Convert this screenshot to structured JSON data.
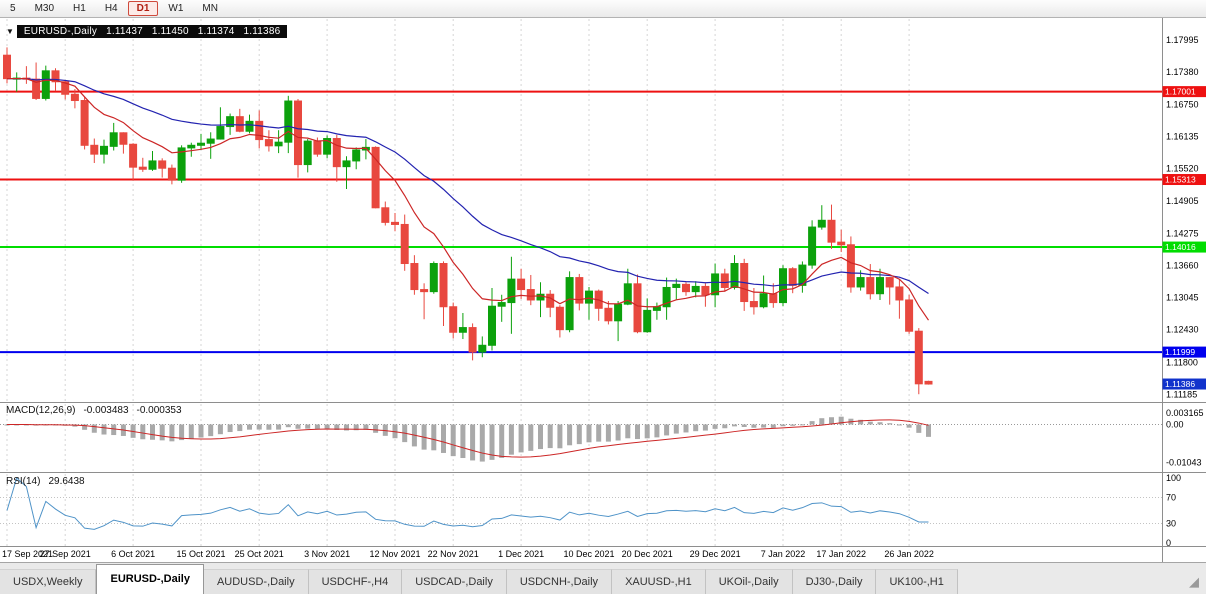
{
  "toolbar": {
    "timeframes": [
      {
        "label": "5",
        "active": false
      },
      {
        "label": "M30",
        "active": false
      },
      {
        "label": "H1",
        "active": false
      },
      {
        "label": "H4",
        "active": false
      },
      {
        "label": "D1",
        "active": true
      },
      {
        "label": "W1",
        "active": false
      },
      {
        "label": "MN",
        "active": false
      }
    ]
  },
  "chart_header": {
    "symbol": "EURUSD-,Daily",
    "open": "1.11437",
    "high": "1.11450",
    "low": "1.11374",
    "close": "1.11386"
  },
  "chart_data": {
    "type": "candlestick",
    "title": "EURUSD-,Daily",
    "up_color": "#0CA10C",
    "down_color": "#E8483F",
    "x_tick_labels": [
      "17 Sep 2021",
      "27 Sep 2021",
      "6 Oct 2021",
      "15 Oct 2021",
      "25 Oct 2021",
      "3 Nov 2021",
      "12 Nov 2021",
      "22 Nov 2021",
      "1 Dec 2021",
      "10 Dec 2021",
      "20 Dec 2021",
      "29 Dec 2021",
      "7 Jan 2022",
      "17 Jan 2022",
      "26 Jan 2022"
    ],
    "x_tick_indices": [
      0,
      6,
      13,
      20,
      26,
      33,
      40,
      46,
      53,
      60,
      66,
      73,
      80,
      86,
      93
    ],
    "candles": [
      [
        1.177,
        1.1785,
        1.1716,
        1.1725
      ],
      [
        1.1725,
        1.1737,
        1.17,
        1.1726
      ],
      [
        1.1726,
        1.1749,
        1.1715,
        1.1724
      ],
      [
        1.1724,
        1.1756,
        1.1684,
        1.1687
      ],
      [
        1.1687,
        1.175,
        1.1683,
        1.174
      ],
      [
        1.174,
        1.1745,
        1.1701,
        1.1719
      ],
      [
        1.1719,
        1.1722,
        1.1685,
        1.1695
      ],
      [
        1.1695,
        1.1705,
        1.1668,
        1.1683
      ],
      [
        1.1683,
        1.169,
        1.1589,
        1.1597
      ],
      [
        1.1597,
        1.161,
        1.1563,
        1.158
      ],
      [
        1.158,
        1.1608,
        1.1562,
        1.1595
      ],
      [
        1.1595,
        1.164,
        1.1587,
        1.1621
      ],
      [
        1.1621,
        1.1622,
        1.1581,
        1.1599
      ],
      [
        1.1599,
        1.1601,
        1.1529,
        1.1555
      ],
      [
        1.1555,
        1.1573,
        1.1546,
        1.1551
      ],
      [
        1.1551,
        1.1586,
        1.1548,
        1.1567
      ],
      [
        1.1567,
        1.1572,
        1.1535,
        1.1553
      ],
      [
        1.1553,
        1.156,
        1.1522,
        1.153
      ],
      [
        1.153,
        1.1597,
        1.1525,
        1.1592
      ],
      [
        1.1592,
        1.1602,
        1.1575,
        1.1597
      ],
      [
        1.1597,
        1.1619,
        1.1588,
        1.1601
      ],
      [
        1.1601,
        1.1622,
        1.1571,
        1.1609
      ],
      [
        1.1609,
        1.167,
        1.1608,
        1.1633
      ],
      [
        1.1633,
        1.1658,
        1.1617,
        1.1652
      ],
      [
        1.1652,
        1.1667,
        1.1622,
        1.1624
      ],
      [
        1.1624,
        1.1656,
        1.162,
        1.1643
      ],
      [
        1.1643,
        1.1664,
        1.1591,
        1.1608
      ],
      [
        1.1608,
        1.1626,
        1.1585,
        1.1596
      ],
      [
        1.1596,
        1.1626,
        1.1582,
        1.1603
      ],
      [
        1.1603,
        1.1692,
        1.1582,
        1.1682
      ],
      [
        1.1682,
        1.1686,
        1.1535,
        1.156
      ],
      [
        1.156,
        1.1609,
        1.1545,
        1.1605
      ],
      [
        1.1605,
        1.1612,
        1.1575,
        1.158
      ],
      [
        1.158,
        1.1616,
        1.1572,
        1.161
      ],
      [
        1.161,
        1.1617,
        1.1527,
        1.1556
      ],
      [
        1.1556,
        1.1576,
        1.1513,
        1.1567
      ],
      [
        1.1567,
        1.1593,
        1.1551,
        1.1588
      ],
      [
        1.1588,
        1.1609,
        1.157,
        1.1593
      ],
      [
        1.1593,
        1.1595,
        1.1476,
        1.1477
      ],
      [
        1.1477,
        1.1489,
        1.1443,
        1.1449
      ],
      [
        1.1449,
        1.1467,
        1.1432,
        1.1445
      ],
      [
        1.1445,
        1.1464,
        1.1356,
        1.137
      ],
      [
        1.137,
        1.1386,
        1.131,
        1.132
      ],
      [
        1.132,
        1.1332,
        1.1263,
        1.1316
      ],
      [
        1.1316,
        1.1374,
        1.1312,
        1.137
      ],
      [
        1.137,
        1.1374,
        1.125,
        1.1287
      ],
      [
        1.1287,
        1.1295,
        1.1226,
        1.1238
      ],
      [
        1.1238,
        1.1275,
        1.1225,
        1.1247
      ],
      [
        1.1247,
        1.1255,
        1.1184,
        1.12
      ],
      [
        1.12,
        1.123,
        1.119,
        1.1213
      ],
      [
        1.1213,
        1.1323,
        1.1203,
        1.1288
      ],
      [
        1.1288,
        1.131,
        1.1258,
        1.1295
      ],
      [
        1.1295,
        1.1383,
        1.1235,
        1.134
      ],
      [
        1.134,
        1.136,
        1.1302,
        1.132
      ],
      [
        1.132,
        1.1348,
        1.129,
        1.13
      ],
      [
        1.13,
        1.1334,
        1.1267,
        1.1311
      ],
      [
        1.1311,
        1.1319,
        1.1267,
        1.1286
      ],
      [
        1.1286,
        1.129,
        1.1228,
        1.1243
      ],
      [
        1.1243,
        1.1355,
        1.1238,
        1.1343
      ],
      [
        1.1343,
        1.135,
        1.128,
        1.1294
      ],
      [
        1.1294,
        1.1325,
        1.1262,
        1.1317
      ],
      [
        1.1317,
        1.132,
        1.126,
        1.1284
      ],
      [
        1.1284,
        1.1298,
        1.1253,
        1.126
      ],
      [
        1.126,
        1.1298,
        1.1221,
        1.1292
      ],
      [
        1.1292,
        1.136,
        1.129,
        1.1331
      ],
      [
        1.1331,
        1.1349,
        1.1236,
        1.1239
      ],
      [
        1.1239,
        1.1303,
        1.1237,
        1.128
      ],
      [
        1.128,
        1.1295,
        1.1262,
        1.1287
      ],
      [
        1.1287,
        1.1343,
        1.1262,
        1.1324
      ],
      [
        1.1324,
        1.1341,
        1.1301,
        1.133
      ],
      [
        1.133,
        1.1334,
        1.1308,
        1.1316
      ],
      [
        1.1316,
        1.1336,
        1.1305,
        1.1326
      ],
      [
        1.1326,
        1.1332,
        1.1287,
        1.131
      ],
      [
        1.131,
        1.137,
        1.1286,
        1.135
      ],
      [
        1.135,
        1.136,
        1.1316,
        1.1324
      ],
      [
        1.1324,
        1.1386,
        1.132,
        1.137
      ],
      [
        1.137,
        1.1379,
        1.1279,
        1.1297
      ],
      [
        1.1297,
        1.1323,
        1.1272,
        1.1287
      ],
      [
        1.1287,
        1.1347,
        1.1284,
        1.1312
      ],
      [
        1.1312,
        1.1332,
        1.1285,
        1.1295
      ],
      [
        1.1295,
        1.1367,
        1.1288,
        1.136
      ],
      [
        1.136,
        1.1363,
        1.1313,
        1.1328
      ],
      [
        1.1328,
        1.1374,
        1.1314,
        1.1367
      ],
      [
        1.1367,
        1.1453,
        1.136,
        1.144
      ],
      [
        1.144,
        1.1482,
        1.1435,
        1.1453
      ],
      [
        1.1453,
        1.1483,
        1.1398,
        1.1411
      ],
      [
        1.1411,
        1.1435,
        1.1392,
        1.1406
      ],
      [
        1.1406,
        1.1422,
        1.1314,
        1.1325
      ],
      [
        1.1325,
        1.1357,
        1.1318,
        1.1343
      ],
      [
        1.1343,
        1.1369,
        1.1301,
        1.1312
      ],
      [
        1.1312,
        1.136,
        1.13,
        1.1343
      ],
      [
        1.1343,
        1.1344,
        1.1291,
        1.1325
      ],
      [
        1.1325,
        1.134,
        1.1264,
        1.13
      ],
      [
        1.13,
        1.131,
        1.1235,
        1.124
      ],
      [
        1.124,
        1.1246,
        1.1119,
        1.1139
      ],
      [
        1.11437,
        1.1145,
        1.11374,
        1.11386
      ]
    ],
    "price_axis": {
      "min": 1.1106,
      "max": 1.1828,
      "labels": [
        "1.17995",
        "1.17380",
        "1.16750",
        "1.16135",
        "1.15520",
        "1.14905",
        "1.14275",
        "1.13660",
        "1.13045",
        "1.12430",
        "1.11800",
        "1.11185"
      ]
    },
    "hlines": [
      {
        "value": 1.17001,
        "label": "1.17001",
        "color": "#ee1111"
      },
      {
        "value": 1.15313,
        "label": "1.15313",
        "color": "#ee1111"
      },
      {
        "value": 1.14016,
        "label": "1.14016",
        "color": "#00dd00"
      },
      {
        "value": 1.11999,
        "label": "1.11999",
        "color": "#0000ee"
      }
    ],
    "last_price": {
      "value": 1.11386,
      "label": "1.11386",
      "color": "#1133cc"
    },
    "moving_averages": [
      {
        "name": "ma-slow-blue",
        "period": 30,
        "color": "#2323b0"
      },
      {
        "name": "ma-fast-red",
        "period": 10,
        "color": "#cc2626"
      }
    ],
    "indicators": {
      "macd": {
        "name": "MACD(12,26,9)",
        "main_value": "-0.003483",
        "signal_value": "-0.000353",
        "fast": 12,
        "slow": 26,
        "signal": 9,
        "axis_labels": [
          "0.003165",
          "0.00",
          "-0.01043"
        ],
        "range": {
          "min": -0.0125,
          "max": 0.0048
        },
        "hist_color": "#a9a9a9",
        "signal_color": "#cc2626"
      },
      "rsi": {
        "name": "RSI(14)",
        "value_text": "29.6438",
        "period": 14,
        "axis_labels": [
          "100",
          "70",
          "30",
          "0"
        ],
        "levels": [
          70,
          30
        ],
        "color": "#4f93c8",
        "range": {
          "min": 0,
          "max": 100
        }
      }
    }
  },
  "tabs": [
    {
      "label": "USDX,Weekly",
      "active": false
    },
    {
      "label": "EURUSD-,Daily",
      "active": true
    },
    {
      "label": "AUDUSD-,Daily",
      "active": false
    },
    {
      "label": "USDCHF-,H4",
      "active": false
    },
    {
      "label": "USDCAD-,Daily",
      "active": false
    },
    {
      "label": "USDCNH-,Daily",
      "active": false
    },
    {
      "label": "XAUUSD-,H1",
      "active": false
    },
    {
      "label": "UKOil-,Daily",
      "active": false
    },
    {
      "label": "DJ30-,Daily",
      "active": false
    },
    {
      "label": "UK100-,H1",
      "active": false
    }
  ]
}
